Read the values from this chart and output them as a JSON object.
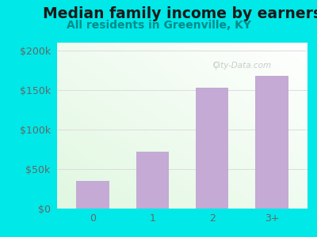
{
  "title": "Median family income by earners",
  "subtitle": "All residents in Greenville, KY",
  "categories": [
    "0",
    "1",
    "2",
    "3+"
  ],
  "values": [
    35000,
    72000,
    153000,
    168000
  ],
  "bar_color": "#c4aad4",
  "title_fontsize": 13.5,
  "subtitle_fontsize": 10,
  "ylabel_ticks": [
    0,
    50000,
    100000,
    150000,
    200000
  ],
  "ylabel_labels": [
    "$0",
    "$50k",
    "$100k",
    "$150k",
    "$200k"
  ],
  "ylim": [
    0,
    210000
  ],
  "bg_outer": "#00e8e8",
  "title_color": "#1a1a1a",
  "subtitle_color": "#008b8b",
  "tick_color": "#666666",
  "watermark": "City-Data.com",
  "watermark_color": "#bbbbbb",
  "grid_color": "#dddddd"
}
